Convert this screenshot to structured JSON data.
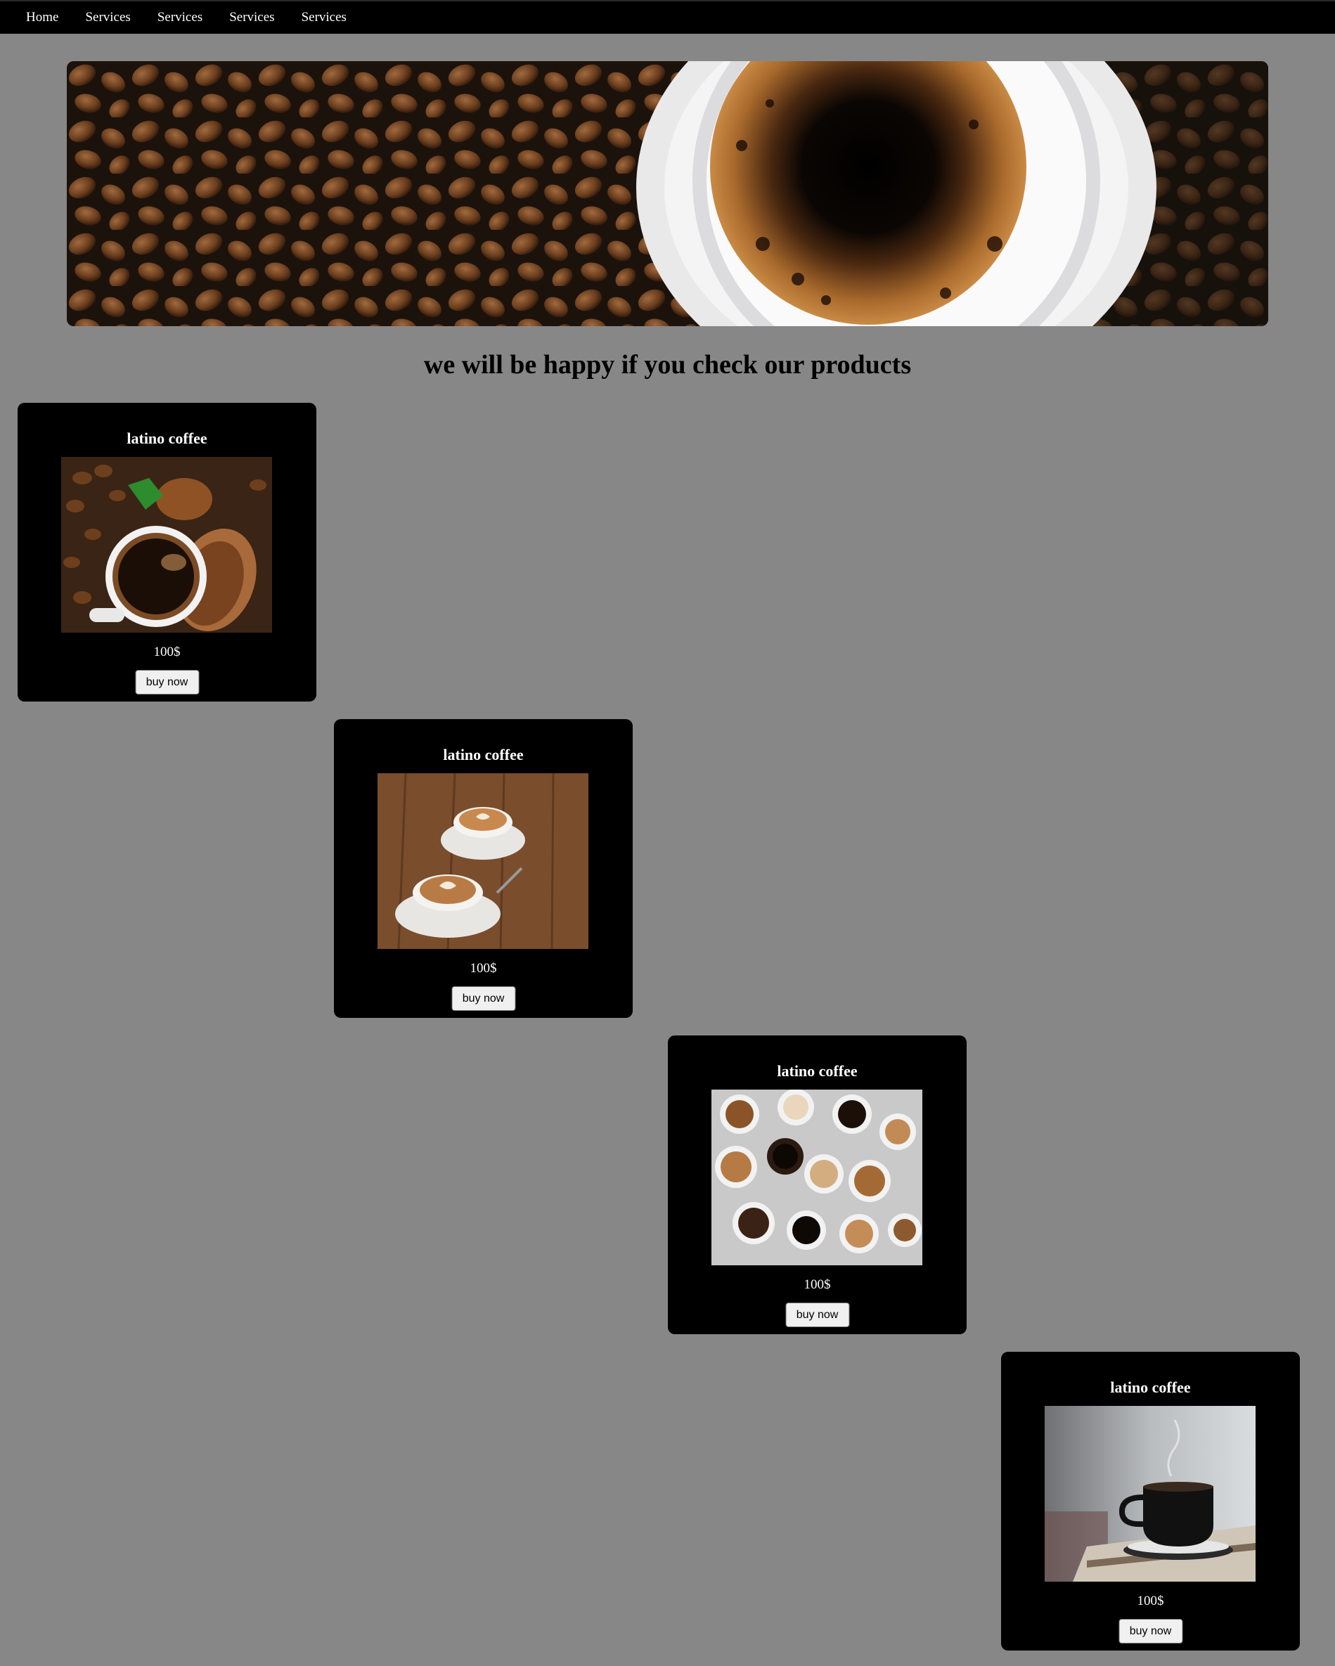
{
  "nav": {
    "items": [
      {
        "label": "Home"
      },
      {
        "label": "Services"
      },
      {
        "label": "Services"
      },
      {
        "label": "Services"
      },
      {
        "label": "Services"
      }
    ]
  },
  "hero": {
    "image": "coffee-cup-and-beans-banner"
  },
  "main": {
    "heading": "we will be happy if you check our products"
  },
  "products": [
    {
      "title": "latino coffee",
      "price": "100$",
      "button": "buy now",
      "image": "coffee-cup-with-beans-and-ground-coffee"
    },
    {
      "title": "latino coffee",
      "price": "100$",
      "button": "buy now",
      "image": "two-latte-art-cups-on-wood"
    },
    {
      "title": "latino coffee",
      "price": "100$",
      "button": "buy now",
      "image": "assorted-coffee-cups-top-view"
    },
    {
      "title": "latino coffee",
      "price": "100$",
      "button": "buy now",
      "image": "black-coffee-cup-steaming"
    }
  ],
  "colors": {
    "page_background": "#878787",
    "navbar": "#000000",
    "card": "#000000",
    "text_light": "#ffffff"
  }
}
